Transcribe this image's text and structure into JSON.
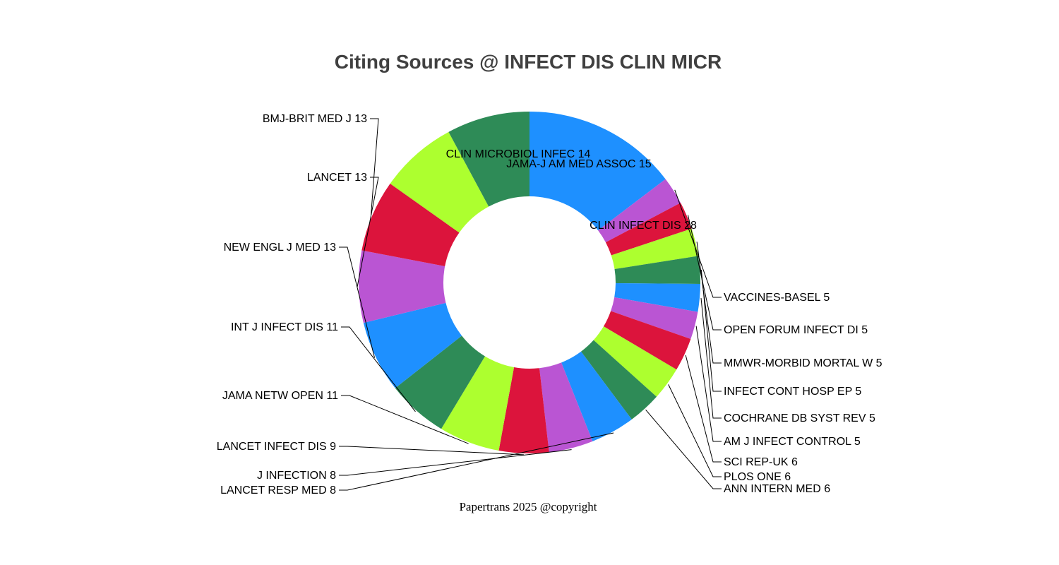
{
  "chart_data": {
    "type": "pie",
    "subtype": "donut",
    "title": "Citing Sources @ INFECT DIS CLIN MICR",
    "footer": "Papertrans 2025 @copyright",
    "colors_cycle": [
      "#1E90FF",
      "#2E8B57",
      "#ADFF2F",
      "#DC143C",
      "#BA55D3"
    ],
    "slices": [
      {
        "label": "CLIN INFECT DIS 28",
        "value": 28,
        "color": "#1E90FF"
      },
      {
        "label": "VACCINES-BASEL 5",
        "value": 5,
        "color": "#BA55D3"
      },
      {
        "label": "OPEN FORUM INFECT DI 5",
        "value": 5,
        "color": "#DC143C"
      },
      {
        "label": "MMWR-MORBID MORTAL W 5",
        "value": 5,
        "color": "#ADFF2F"
      },
      {
        "label": "INFECT CONT HOSP EP 5",
        "value": 5,
        "color": "#2E8B57"
      },
      {
        "label": "COCHRANE DB SYST REV 5",
        "value": 5,
        "color": "#1E90FF"
      },
      {
        "label": "AM J INFECT CONTROL 5",
        "value": 5,
        "color": "#BA55D3"
      },
      {
        "label": "SCI REP-UK 6",
        "value": 6,
        "color": "#DC143C"
      },
      {
        "label": "PLOS ONE 6",
        "value": 6,
        "color": "#ADFF2F"
      },
      {
        "label": "ANN INTERN MED 6",
        "value": 6,
        "color": "#2E8B57"
      },
      {
        "label": "LANCET RESP MED 8",
        "value": 8,
        "color": "#1E90FF"
      },
      {
        "label": "J INFECTION 8",
        "value": 8,
        "color": "#BA55D3"
      },
      {
        "label": "LANCET INFECT DIS 9",
        "value": 9,
        "color": "#DC143C"
      },
      {
        "label": "JAMA NETW OPEN 11",
        "value": 11,
        "color": "#ADFF2F"
      },
      {
        "label": "INT J INFECT DIS 11",
        "value": 11,
        "color": "#2E8B57"
      },
      {
        "label": "NEW ENGL J MED 13",
        "value": 13,
        "color": "#1E90FF"
      },
      {
        "label": "LANCET 13",
        "value": 13,
        "color": "#BA55D3"
      },
      {
        "label": "BMJ-BRIT MED J 13",
        "value": 13,
        "color": "#DC143C"
      },
      {
        "label": "CLIN MICROBIOL INFEC 14",
        "value": 14,
        "color": "#ADFF2F"
      },
      {
        "label": "JAMA-J AM MED ASSOC 15",
        "value": 15,
        "color": "#2E8B57"
      }
    ]
  }
}
